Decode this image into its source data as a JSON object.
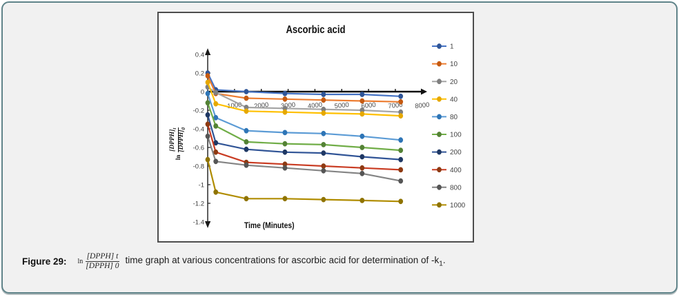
{
  "figure_card": {
    "background_color": "#f1f1f1",
    "border_color": "#5f8389"
  },
  "chart": {
    "title": "Ascorbic acid",
    "x_axis_label": "Time (Minutes)",
    "y_axis_label": {
      "prefix": "ln",
      "numerator": "[DPPH]",
      "numerator_sub": "t",
      "denominator": "[DPPH]",
      "denominator_sub": "0"
    }
  },
  "chart_data": {
    "type": "line",
    "title": "Ascorbic acid",
    "xlabel": "Time (Minutes)",
    "ylabel": "ln([DPPH]t/[DPPH]0)",
    "xlim": [
      0,
      8300
    ],
    "ylim": [
      -1.4,
      0.4
    ],
    "grid": false,
    "legend_position": "right",
    "legend_title": "",
    "x": [
      0,
      300,
      1440,
      2880,
      4320,
      5760,
      7200
    ],
    "x_tick_values": [
      1000,
      2000,
      3000,
      4000,
      5000,
      6000,
      7000,
      8000
    ],
    "x_tick_labels": [
      "1000",
      "2000",
      "3000",
      "4000",
      "5000",
      "6000",
      "7000",
      "8000"
    ],
    "y_tick_values": [
      0.4,
      0.2,
      0,
      -0.2,
      -0.4,
      -0.6,
      -0.8,
      -1,
      -1.2,
      -1.4
    ],
    "y_tick_labels": [
      "0.4",
      "0.2",
      "0",
      "-0.2",
      "-0.4",
      "-0.6",
      "-0.8",
      "-1",
      "-1.2",
      "-1.4"
    ],
    "series": [
      {
        "name": "1",
        "color": "#4472C4",
        "marker_color": "#2F5597",
        "values": [
          0.2,
          0.02,
          0.0,
          -0.02,
          -0.03,
          -0.03,
          -0.05
        ]
      },
      {
        "name": "10",
        "color": "#ED7D31",
        "marker_color": "#C55A11",
        "values": [
          0.17,
          -0.02,
          -0.07,
          -0.08,
          -0.09,
          -0.1,
          -0.11
        ]
      },
      {
        "name": "20",
        "color": "#A5A5A5",
        "marker_color": "#7F7F7F",
        "values": [
          0.05,
          -0.01,
          -0.17,
          -0.18,
          -0.19,
          -0.2,
          -0.22
        ]
      },
      {
        "name": "40",
        "color": "#FFC000",
        "marker_color": "#E6A800",
        "values": [
          0.1,
          -0.13,
          -0.21,
          -0.22,
          -0.23,
          -0.24,
          -0.26
        ]
      },
      {
        "name": "80",
        "color": "#5B9BD5",
        "marker_color": "#2E75B6",
        "values": [
          -0.02,
          -0.28,
          -0.42,
          -0.44,
          -0.45,
          -0.48,
          -0.52
        ]
      },
      {
        "name": "100",
        "color": "#70AD47",
        "marker_color": "#548235",
        "values": [
          -0.12,
          -0.37,
          -0.54,
          -0.56,
          -0.57,
          -0.6,
          -0.63
        ]
      },
      {
        "name": "200",
        "color": "#305496",
        "marker_color": "#1F3864",
        "values": [
          -0.25,
          -0.55,
          -0.62,
          -0.65,
          -0.66,
          -0.7,
          -0.73
        ]
      },
      {
        "name": "400",
        "color": "#C93C23",
        "marker_color": "#8E3A12",
        "values": [
          -0.35,
          -0.65,
          -0.76,
          -0.78,
          -0.8,
          -0.82,
          -0.84
        ]
      },
      {
        "name": "800",
        "color": "#848484",
        "marker_color": "#555555",
        "values": [
          -0.48,
          -0.75,
          -0.79,
          -0.82,
          -0.85,
          -0.88,
          -0.96
        ]
      },
      {
        "name": "1000",
        "color": "#B08C00",
        "marker_color": "#8F7300",
        "values": [
          -0.73,
          -1.08,
          -1.15,
          -1.15,
          -1.16,
          -1.17,
          -1.18
        ]
      }
    ]
  },
  "caption": {
    "figure_label": "Figure 29:",
    "formula_prefix": "ln",
    "formula_numerator": "[DPPH] t",
    "formula_denominator": "[DPPH] 0",
    "text": "time graph at various concentrations for ascorbic acid for determination of -k",
    "k_subscript": "1",
    "end": "."
  }
}
